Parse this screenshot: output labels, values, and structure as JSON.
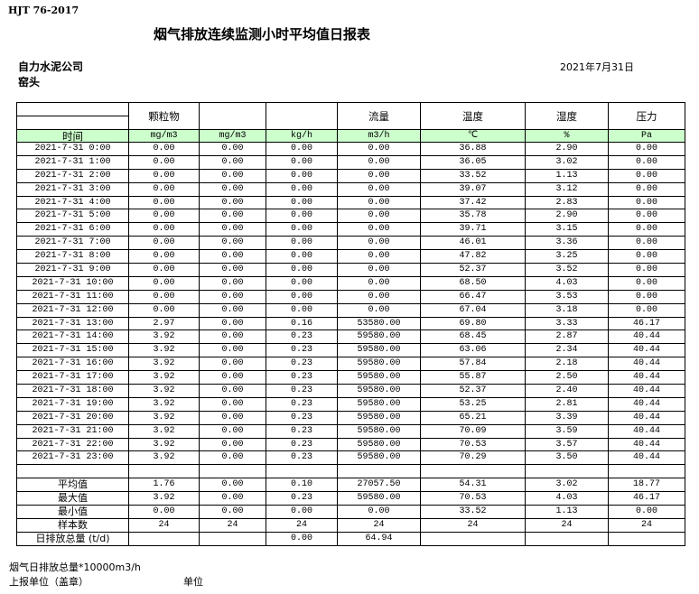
{
  "standard": "HJT  76-2017",
  "title": "烟气排放连续监测小时平均值日报表",
  "company": "自力水泥公司",
  "site": "窑头",
  "report_date": "2021年7月31日",
  "header": {
    "row1": [
      "",
      "颗粒物",
      "",
      "",
      "流量",
      "温度",
      "湿度",
      "压力"
    ],
    "units": [
      "时间",
      "mg/m3",
      "mg/m3",
      "kg/h",
      "m3/h",
      "℃",
      "%",
      "Pa"
    ]
  },
  "rows": [
    [
      "2021-7-31 0:00",
      "0.00",
      "0.00",
      "0.00",
      "0.00",
      "36.88",
      "2.90",
      "0.00"
    ],
    [
      "2021-7-31 1:00",
      "0.00",
      "0.00",
      "0.00",
      "0.00",
      "36.05",
      "3.02",
      "0.00"
    ],
    [
      "2021-7-31 2:00",
      "0.00",
      "0.00",
      "0.00",
      "0.00",
      "33.52",
      "1.13",
      "0.00"
    ],
    [
      "2021-7-31 3:00",
      "0.00",
      "0.00",
      "0.00",
      "0.00",
      "39.07",
      "3.12",
      "0.00"
    ],
    [
      "2021-7-31 4:00",
      "0.00",
      "0.00",
      "0.00",
      "0.00",
      "37.42",
      "2.83",
      "0.00"
    ],
    [
      "2021-7-31 5:00",
      "0.00",
      "0.00",
      "0.00",
      "0.00",
      "35.78",
      "2.90",
      "0.00"
    ],
    [
      "2021-7-31 6:00",
      "0.00",
      "0.00",
      "0.00",
      "0.00",
      "39.71",
      "3.15",
      "0.00"
    ],
    [
      "2021-7-31 7:00",
      "0.00",
      "0.00",
      "0.00",
      "0.00",
      "46.01",
      "3.36",
      "0.00"
    ],
    [
      "2021-7-31 8:00",
      "0.00",
      "0.00",
      "0.00",
      "0.00",
      "47.82",
      "3.25",
      "0.00"
    ],
    [
      "2021-7-31 9:00",
      "0.00",
      "0.00",
      "0.00",
      "0.00",
      "52.37",
      "3.52",
      "0.00"
    ],
    [
      "2021-7-31 10:00",
      "0.00",
      "0.00",
      "0.00",
      "0.00",
      "68.50",
      "4.03",
      "0.00"
    ],
    [
      "2021-7-31 11:00",
      "0.00",
      "0.00",
      "0.00",
      "0.00",
      "66.47",
      "3.53",
      "0.00"
    ],
    [
      "2021-7-31 12:00",
      "0.00",
      "0.00",
      "0.00",
      "0.00",
      "67.04",
      "3.18",
      "0.00"
    ],
    [
      "2021-7-31 13:00",
      "2.97",
      "0.00",
      "0.16",
      "53580.00",
      "69.80",
      "3.33",
      "46.17"
    ],
    [
      "2021-7-31 14:00",
      "3.92",
      "0.00",
      "0.23",
      "59580.00",
      "68.45",
      "2.87",
      "40.44"
    ],
    [
      "2021-7-31 15:00",
      "3.92",
      "0.00",
      "0.23",
      "59580.00",
      "63.06",
      "2.34",
      "40.44"
    ],
    [
      "2021-7-31 16:00",
      "3.92",
      "0.00",
      "0.23",
      "59580.00",
      "57.84",
      "2.18",
      "40.44"
    ],
    [
      "2021-7-31 17:00",
      "3.92",
      "0.00",
      "0.23",
      "59580.00",
      "55.87",
      "2.50",
      "40.44"
    ],
    [
      "2021-7-31 18:00",
      "3.92",
      "0.00",
      "0.23",
      "59580.00",
      "52.37",
      "2.40",
      "40.44"
    ],
    [
      "2021-7-31 19:00",
      "3.92",
      "0.00",
      "0.23",
      "59580.00",
      "53.25",
      "2.81",
      "40.44"
    ],
    [
      "2021-7-31 20:00",
      "3.92",
      "0.00",
      "0.23",
      "59580.00",
      "65.21",
      "3.39",
      "40.44"
    ],
    [
      "2021-7-31 21:00",
      "3.92",
      "0.00",
      "0.23",
      "59580.00",
      "70.09",
      "3.59",
      "40.44"
    ],
    [
      "2021-7-31 22:00",
      "3.92",
      "0.00",
      "0.23",
      "59580.00",
      "70.53",
      "3.57",
      "40.44"
    ],
    [
      "2021-7-31 23:00",
      "3.92",
      "0.00",
      "0.23",
      "59580.00",
      "70.29",
      "3.50",
      "40.44"
    ]
  ],
  "summary": [
    [
      "",
      "",
      "",
      "",
      "",
      "",
      "",
      ""
    ],
    [
      "平均值",
      "1.76",
      "0.00",
      "0.10",
      "27057.50",
      "54.31",
      "3.02",
      "18.77"
    ],
    [
      "最大值",
      "3.92",
      "0.00",
      "0.23",
      "59580.00",
      "70.53",
      "4.03",
      "46.17"
    ],
    [
      "最小值",
      "0.00",
      "0.00",
      "0.00",
      "0.00",
      "33.52",
      "1.13",
      "0.00"
    ],
    [
      "样本数",
      "24",
      "24",
      "24",
      "24",
      "24",
      "24",
      "24"
    ],
    [
      "日排放总量 (t/d)",
      "",
      "",
      "0.00",
      "64.94",
      "",
      "",
      ""
    ]
  ],
  "footer": {
    "flue_gas_total": "烟气日排放总量*10000m3/h",
    "reporting_unit": "上报单位（盖章）",
    "unit": "单位"
  },
  "colors": {
    "unit_row_bg": "#ccffcc"
  }
}
